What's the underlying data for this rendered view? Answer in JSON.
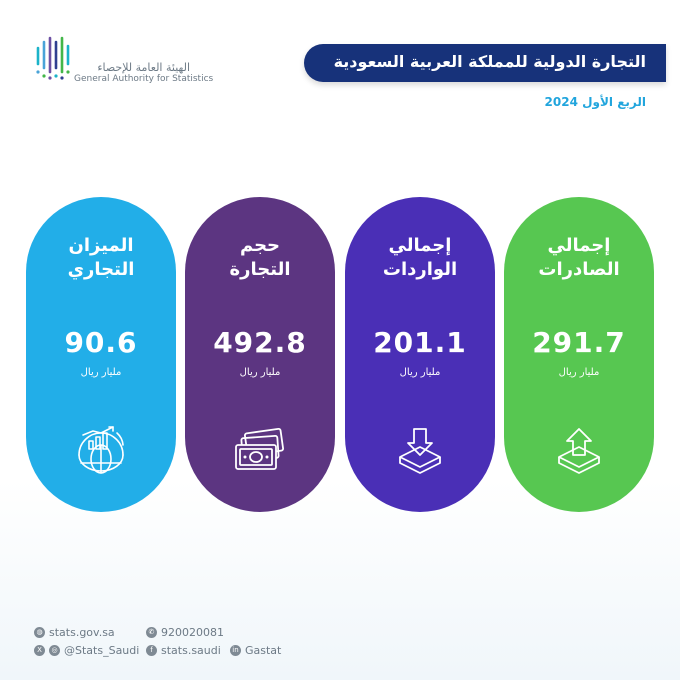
{
  "header": {
    "org_name_ar": "الهيئة العامة للإحصاء",
    "org_name_en": "General Authority for Statistics",
    "title": "التجارة الدولية للمملكة العربية السعودية",
    "period": "الربع الأول 2024"
  },
  "colors": {
    "banner": "#17327a",
    "subtitle": "#21a5dd",
    "balance": "#22aee8",
    "volume": "#5c3581",
    "imports": "#4a2fb6",
    "exports": "#57c751"
  },
  "cards": {
    "balance": {
      "line1": "الميزان",
      "line2": "التجاري",
      "value": "90.6",
      "unit": "مليار ريال",
      "icon": "globe-growth-chart-icon"
    },
    "volume": {
      "line1": "حجم",
      "line2": "التجارة",
      "value": "492.8",
      "unit": "مليار ريال",
      "icon": "banknotes-icon"
    },
    "imports": {
      "line1": "إجمالي",
      "line2": "الواردات",
      "value": "201.1",
      "unit": "مليار ريال",
      "icon": "download-box-icon"
    },
    "exports": {
      "line1": "إجمالي",
      "line2": "الصادرات",
      "value": "291.7",
      "unit": "مليار ريال",
      "icon": "upload-box-icon"
    }
  },
  "footer": {
    "website": "stats.gov.sa",
    "phone": "920020081",
    "x_instagram": "@Stats_Saudi",
    "facebook": "stats.saudi",
    "linkedin": "Gastat"
  }
}
